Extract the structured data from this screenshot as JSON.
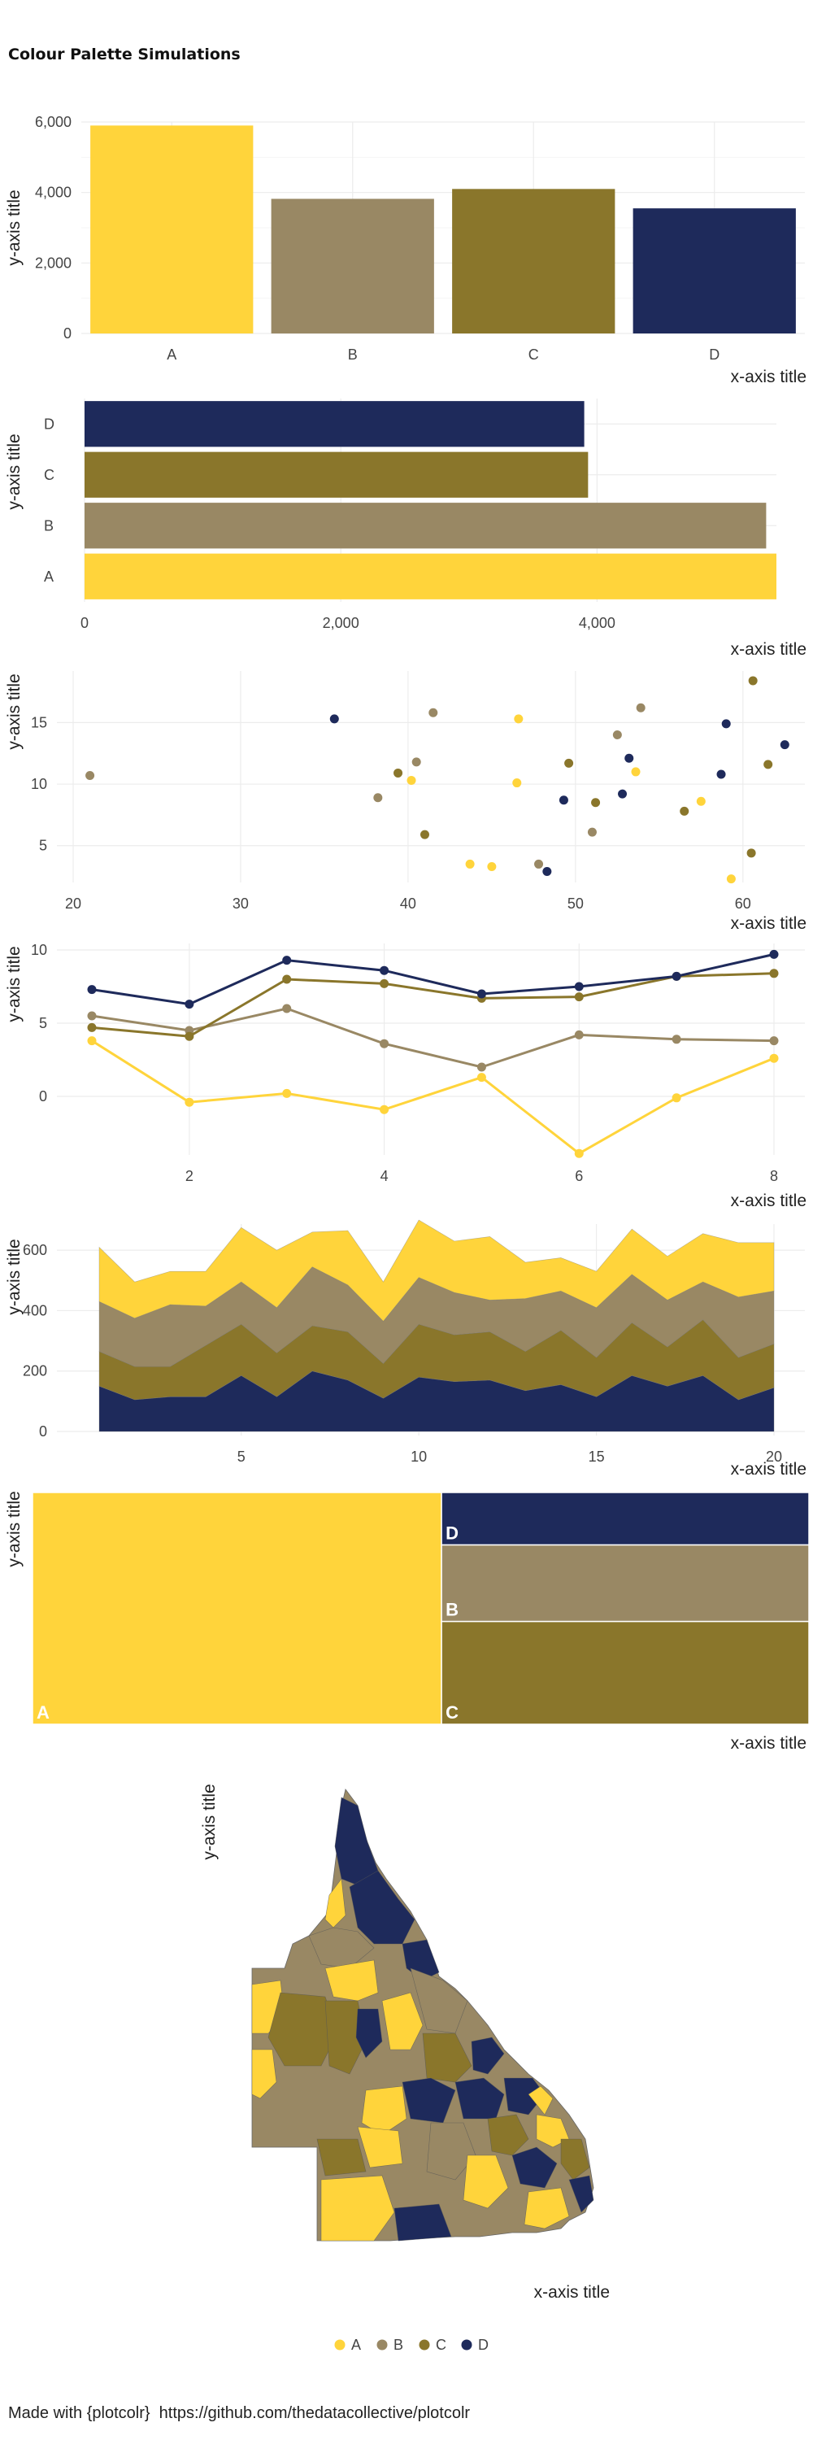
{
  "title": "Colour Palette Simulations",
  "colors": {
    "A": "#FFD43B",
    "B": "#998864",
    "C": "#8A762B",
    "D": "#1E2A5B"
  },
  "legend": [
    "A",
    "B",
    "C",
    "D"
  ],
  "footer": "Made with {plotcolr}  https://github.com/thedatacollective/plotcolr",
  "chart_data": [
    {
      "type": "bar",
      "categories": [
        "A",
        "B",
        "C",
        "D"
      ],
      "values": [
        5900,
        3820,
        4100,
        3550
      ],
      "xlabel": "x-axis title",
      "ylabel": "y-axis title",
      "ylim": [
        0,
        6000
      ],
      "yticks": [
        "0",
        "2,000",
        "4,000",
        "6,000"
      ]
    },
    {
      "type": "bar",
      "orientation": "horizontal",
      "categories": [
        "A",
        "B",
        "C",
        "D"
      ],
      "values": [
        5400,
        5320,
        3930,
        3900
      ],
      "xlabel": "x-axis title",
      "ylabel": "y-axis title",
      "xlim": [
        0,
        5400
      ],
      "xticks": [
        "0",
        "2,000",
        "4,000"
      ]
    },
    {
      "type": "scatter",
      "xlabel": "x-axis title",
      "ylabel": "y-axis title",
      "xlim": [
        20,
        62
      ],
      "ylim": [
        3,
        18
      ],
      "xticks": [
        "20",
        "30",
        "40",
        "50",
        "60"
      ],
      "yticks": [
        "5",
        "10",
        "15"
      ],
      "points": [
        {
          "x": 21.0,
          "y": 10.7,
          "group": "B"
        },
        {
          "x": 35.6,
          "y": 15.3,
          "group": "D"
        },
        {
          "x": 38.2,
          "y": 8.9,
          "group": "B"
        },
        {
          "x": 39.4,
          "y": 10.9,
          "group": "C"
        },
        {
          "x": 40.2,
          "y": 10.3,
          "group": "A"
        },
        {
          "x": 40.5,
          "y": 11.8,
          "group": "B"
        },
        {
          "x": 41.0,
          "y": 5.9,
          "group": "C"
        },
        {
          "x": 41.5,
          "y": 15.8,
          "group": "B"
        },
        {
          "x": 43.7,
          "y": 3.5,
          "group": "A"
        },
        {
          "x": 45.0,
          "y": 3.3,
          "group": "A"
        },
        {
          "x": 46.5,
          "y": 10.1,
          "group": "A"
        },
        {
          "x": 46.6,
          "y": 15.3,
          "group": "A"
        },
        {
          "x": 47.8,
          "y": 3.5,
          "group": "B"
        },
        {
          "x": 48.3,
          "y": 2.9,
          "group": "D"
        },
        {
          "x": 49.3,
          "y": 8.7,
          "group": "D"
        },
        {
          "x": 49.6,
          "y": 11.7,
          "group": "C"
        },
        {
          "x": 51.0,
          "y": 6.1,
          "group": "B"
        },
        {
          "x": 51.2,
          "y": 8.5,
          "group": "C"
        },
        {
          "x": 52.5,
          "y": 14.0,
          "group": "B"
        },
        {
          "x": 52.8,
          "y": 9.2,
          "group": "D"
        },
        {
          "x": 53.2,
          "y": 12.1,
          "group": "D"
        },
        {
          "x": 53.6,
          "y": 11.0,
          "group": "A"
        },
        {
          "x": 53.9,
          "y": 16.2,
          "group": "B"
        },
        {
          "x": 56.5,
          "y": 7.8,
          "group": "C"
        },
        {
          "x": 57.5,
          "y": 8.6,
          "group": "A"
        },
        {
          "x": 58.7,
          "y": 10.8,
          "group": "D"
        },
        {
          "x": 59.0,
          "y": 14.9,
          "group": "D"
        },
        {
          "x": 59.3,
          "y": 2.3,
          "group": "A"
        },
        {
          "x": 60.5,
          "y": 4.4,
          "group": "C"
        },
        {
          "x": 60.6,
          "y": 18.4,
          "group": "C"
        },
        {
          "x": 61.5,
          "y": 11.6,
          "group": "C"
        },
        {
          "x": 62.5,
          "y": 13.2,
          "group": "D"
        }
      ]
    },
    {
      "type": "line",
      "xlabel": "x-axis title",
      "ylabel": "y-axis title",
      "xlim": [
        1,
        8
      ],
      "ylim": [
        -4,
        10
      ],
      "xticks": [
        "2",
        "4",
        "6",
        "8"
      ],
      "yticks": [
        "0",
        "5",
        "10"
      ],
      "x": [
        1,
        2,
        3,
        4,
        5,
        6,
        7,
        8
      ],
      "series": [
        {
          "group": "A",
          "values": [
            3.8,
            -0.4,
            0.2,
            -0.9,
            1.3,
            -3.9,
            -0.1,
            2.6
          ]
        },
        {
          "group": "B",
          "values": [
            5.5,
            4.5,
            6.0,
            3.6,
            2.0,
            4.2,
            3.9,
            3.8
          ]
        },
        {
          "group": "C",
          "values": [
            4.7,
            4.1,
            8.0,
            7.7,
            6.7,
            6.8,
            8.2,
            8.4
          ]
        },
        {
          "group": "D",
          "values": [
            7.3,
            6.3,
            9.3,
            8.6,
            7.0,
            7.5,
            8.2,
            9.7
          ]
        }
      ]
    },
    {
      "type": "area",
      "stacked": true,
      "xlabel": "x-axis title",
      "ylabel": "y-axis title",
      "xlim": [
        1,
        20
      ],
      "ylim": [
        0,
        700
      ],
      "xticks": [
        "5",
        "10",
        "15",
        "20"
      ],
      "yticks": [
        "0",
        "200",
        "400",
        "600"
      ],
      "x": [
        1,
        2,
        3,
        4,
        5,
        6,
        7,
        8,
        9,
        10,
        11,
        12,
        13,
        14,
        15,
        16,
        17,
        18,
        19,
        20
      ],
      "series": [
        {
          "group": "D",
          "values": [
            150,
            105,
            115,
            115,
            185,
            115,
            200,
            170,
            110,
            180,
            165,
            170,
            135,
            155,
            115,
            185,
            150,
            185,
            105,
            145
          ]
        },
        {
          "group": "C",
          "values": [
            115,
            110,
            100,
            170,
            170,
            145,
            150,
            160,
            115,
            175,
            155,
            160,
            130,
            180,
            130,
            175,
            130,
            185,
            140,
            145
          ]
        },
        {
          "group": "B",
          "values": [
            165,
            160,
            205,
            130,
            140,
            150,
            195,
            155,
            140,
            155,
            140,
            105,
            175,
            130,
            165,
            160,
            155,
            125,
            200,
            175
          ]
        },
        {
          "group": "A",
          "values": [
            180,
            120,
            110,
            115,
            180,
            190,
            115,
            180,
            130,
            190,
            170,
            210,
            120,
            110,
            120,
            150,
            145,
            160,
            180,
            160
          ]
        }
      ]
    },
    {
      "type": "treemap",
      "xlabel": "x-axis title",
      "ylabel": "y-axis title",
      "tiles": [
        {
          "label": "A",
          "group": "A",
          "value": 5900
        },
        {
          "label": "D",
          "group": "D",
          "value": 1200
        },
        {
          "label": "B",
          "group": "B",
          "value": 1750
        },
        {
          "label": "C",
          "group": "C",
          "value": 2350
        }
      ]
    },
    {
      "type": "map",
      "xlabel": "x-axis title",
      "ylabel": "y-axis title"
    }
  ]
}
